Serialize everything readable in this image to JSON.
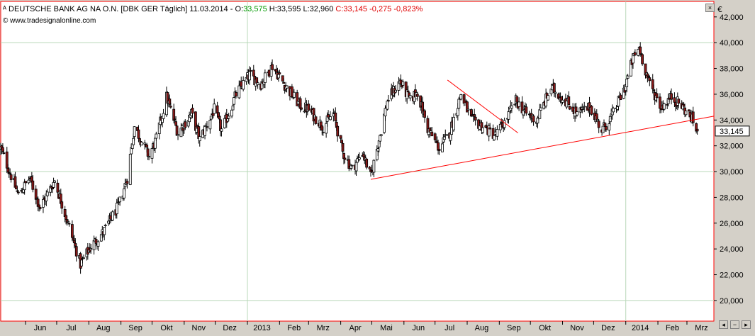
{
  "header": {
    "icon": "candlestick-icon",
    "instrument": "DEUTSCHE BANK AG NA O.N.",
    "exchange": "[DBK GER",
    "interval": "Täglich]",
    "date": "11.03.2014",
    "open_label": "O:",
    "open_value": "33,575",
    "high": "H:33,595",
    "low": "L:32,960",
    "close": "C:33,145",
    "change": "-0,275",
    "change_pct": "-0,823%",
    "open_color": "#009900",
    "change_color": "#e00000"
  },
  "copyright": "© www.tradesignalonline.com",
  "currency_label": "€",
  "colors": {
    "background": "#ffffff",
    "frame": "#d4d0c8",
    "panel_border": "#ff0000",
    "grid": "#b8d8b8",
    "bull_fill": "#ffffff",
    "bear_fill": "#8b1a1a",
    "wick": "#000000",
    "trendline": "#ff0000",
    "price_box": "#ffffff"
  },
  "chart_data": {
    "type": "candlestick",
    "title": "",
    "xlabel": "",
    "ylabel": "",
    "ylim": [
      18.4,
      43.2
    ],
    "y_ticks": [
      "20,000",
      "22,000",
      "24,000",
      "26,000",
      "28,000",
      "30,000",
      "32,000",
      "34,000",
      "36,000",
      "38,000",
      "40,000",
      "42,000"
    ],
    "x_ticks": [
      "Jun",
      "Jul",
      "Aug",
      "Sep",
      "Okt",
      "Nov",
      "Dez",
      "2013",
      "Feb",
      "Mrz",
      "Apr",
      "Mai",
      "Jun",
      "Jul",
      "Aug",
      "Sep",
      "Okt",
      "Nov",
      "Dez",
      "2014",
      "Feb",
      "Mrz"
    ],
    "x_range": [
      "2012-05-08",
      "2014-03-27"
    ],
    "grid": "year-start and 10-unit lines",
    "last_price": "33,145",
    "last_close": 33.145,
    "close_path": [
      [
        "2012-05-08",
        31.8
      ],
      [
        "2012-05-25",
        28.2
      ],
      [
        "2012-06-05",
        29.5
      ],
      [
        "2012-06-15",
        27.2
      ],
      [
        "2012-06-29",
        29.3
      ],
      [
        "2012-07-10",
        26.5
      ],
      [
        "2012-07-24",
        22.8
      ],
      [
        "2012-08-03",
        24.2
      ],
      [
        "2012-08-15",
        25.3
      ],
      [
        "2012-08-30",
        27.4
      ],
      [
        "2012-09-07",
        29.5
      ],
      [
        "2012-09-14",
        33.5
      ],
      [
        "2012-09-28",
        31.2
      ],
      [
        "2012-10-05",
        32.5
      ],
      [
        "2012-10-15",
        35.8
      ],
      [
        "2012-10-26",
        33.0
      ],
      [
        "2012-11-08",
        34.5
      ],
      [
        "2012-11-16",
        32.5
      ],
      [
        "2012-11-30",
        34.8
      ],
      [
        "2012-12-07",
        33.2
      ],
      [
        "2012-12-14",
        34.5
      ],
      [
        "2012-12-21",
        36.0
      ],
      [
        "2013-01-03",
        37.5
      ],
      [
        "2013-01-14",
        36.8
      ],
      [
        "2013-01-25",
        38.2
      ],
      [
        "2013-02-08",
        36.5
      ],
      [
        "2013-02-20",
        35.2
      ],
      [
        "2013-03-01",
        34.8
      ],
      [
        "2013-03-15",
        33.5
      ],
      [
        "2013-03-25",
        34.5
      ],
      [
        "2013-04-03",
        31.5
      ],
      [
        "2013-04-12",
        30.2
      ],
      [
        "2013-04-22",
        31.5
      ],
      [
        "2013-04-30",
        29.6
      ],
      [
        "2013-05-08",
        32.5
      ],
      [
        "2013-05-16",
        35.5
      ],
      [
        "2013-05-28",
        37.0
      ],
      [
        "2013-06-07",
        35.5
      ],
      [
        "2013-06-14",
        36.2
      ],
      [
        "2013-06-24",
        33.3
      ],
      [
        "2013-07-05",
        31.8
      ],
      [
        "2013-07-15",
        33.0
      ],
      [
        "2013-07-26",
        36.0
      ],
      [
        "2013-08-05",
        34.0
      ],
      [
        "2013-08-16",
        33.5
      ],
      [
        "2013-08-28",
        32.8
      ],
      [
        "2013-09-06",
        33.8
      ],
      [
        "2013-09-17",
        35.5
      ],
      [
        "2013-09-27",
        34.5
      ],
      [
        "2013-10-07",
        34.0
      ],
      [
        "2013-10-21",
        36.5
      ],
      [
        "2013-11-04",
        35.5
      ],
      [
        "2013-11-15",
        34.5
      ],
      [
        "2013-11-28",
        35.0
      ],
      [
        "2013-12-09",
        33.2
      ],
      [
        "2013-12-20",
        34.5
      ],
      [
        "2013-12-31",
        36.5
      ],
      [
        "2014-01-08",
        38.8
      ],
      [
        "2014-01-14",
        39.6
      ],
      [
        "2014-01-23",
        37.0
      ],
      [
        "2014-02-04",
        35.0
      ],
      [
        "2014-02-14",
        35.8
      ],
      [
        "2014-02-25",
        35.0
      ],
      [
        "2014-03-05",
        34.2
      ],
      [
        "2014-03-11",
        33.145
      ]
    ],
    "trendlines": [
      {
        "name": "",
        "points": [
          [
            "2013-04-30",
            29.4
          ],
          [
            "2014-03-27",
            34.3
          ]
        ]
      },
      {
        "name": "",
        "points": [
          [
            "2013-07-13",
            37.1
          ],
          [
            "2013-09-19",
            33.0
          ]
        ]
      }
    ]
  }
}
